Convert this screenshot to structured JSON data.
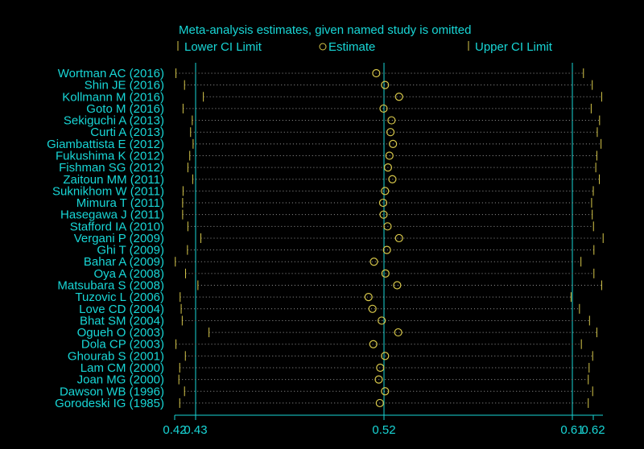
{
  "chart_data": {
    "type": "forest",
    "title": "Meta-analysis estimates, given named study is omitted",
    "legend": [
      {
        "symbol": "|",
        "label": "Lower CI Limit"
      },
      {
        "symbol": "o",
        "label": "Estimate"
      },
      {
        "symbol": "|",
        "label": "Upper CI Limit"
      }
    ],
    "x_ticks": [
      "0.42",
      "0.43",
      "0.52",
      "0.61",
      "0.62"
    ],
    "x_tick_values": [
      0.42,
      0.43,
      0.52,
      0.61,
      0.62
    ],
    "xlim": [
      0.42,
      0.62
    ],
    "reference_lines": [
      0.43,
      0.52,
      0.61
    ],
    "studies": [
      {
        "label": "Wortman AC (2016)",
        "lower": 0.4206,
        "estimate": 0.5163,
        "upper": 0.6153
      },
      {
        "label": "Shin JE (2016)",
        "lower": 0.4247,
        "estimate": 0.5205,
        "upper": 0.6195
      },
      {
        "label": "Kollmann M (2016)",
        "lower": 0.4337,
        "estimate": 0.5272,
        "upper": 0.624
      },
      {
        "label": "Goto M (2016)",
        "lower": 0.424,
        "estimate": 0.5198,
        "upper": 0.619
      },
      {
        "label": "Sekiguchi A (2013)",
        "lower": 0.4284,
        "estimate": 0.5236,
        "upper": 0.623
      },
      {
        "label": "Curti A (2013)",
        "lower": 0.4276,
        "estimate": 0.5231,
        "upper": 0.6219
      },
      {
        "label": "Giambattista E (2012)",
        "lower": 0.4288,
        "estimate": 0.5243,
        "upper": 0.6237
      },
      {
        "label": "Fukushima K (2012)",
        "lower": 0.4272,
        "estimate": 0.5226,
        "upper": 0.6217
      },
      {
        "label": "Fishman SG (2012)",
        "lower": 0.4263,
        "estimate": 0.5219,
        "upper": 0.6212
      },
      {
        "label": "Zaitoun MM (2011)",
        "lower": 0.4286,
        "estimate": 0.524,
        "upper": 0.6229
      },
      {
        "label": "Suknikhom W (2011)",
        "lower": 0.424,
        "estimate": 0.5205,
        "upper": 0.62
      },
      {
        "label": "Mimura T (2011)",
        "lower": 0.4238,
        "estimate": 0.5196,
        "upper": 0.6192
      },
      {
        "label": "Hasegawa J (2011)",
        "lower": 0.4238,
        "estimate": 0.5198,
        "upper": 0.6195
      },
      {
        "label": "Stafford IA (2010)",
        "lower": 0.4263,
        "estimate": 0.5217,
        "upper": 0.6201
      },
      {
        "label": "Vergani P (2009)",
        "lower": 0.4325,
        "estimate": 0.5272,
        "upper": 0.6247
      },
      {
        "label": "Ghi T (2009)",
        "lower": 0.4261,
        "estimate": 0.5214,
        "upper": 0.6203
      },
      {
        "label": "Bahar A (2009)",
        "lower": 0.4203,
        "estimate": 0.5152,
        "upper": 0.6141
      },
      {
        "label": "Oya A (2008)",
        "lower": 0.4252,
        "estimate": 0.5207,
        "upper": 0.6203
      },
      {
        "label": "Matsubara S (2008)",
        "lower": 0.4311,
        "estimate": 0.5263,
        "upper": 0.624
      },
      {
        "label": "Tuzovic L (2006)",
        "lower": 0.4226,
        "estimate": 0.5126,
        "upper": 0.6094
      },
      {
        "label": "Love CD (2004)",
        "lower": 0.4231,
        "estimate": 0.5145,
        "upper": 0.6134
      },
      {
        "label": "Bhat SM (2004)",
        "lower": 0.4236,
        "estimate": 0.5189,
        "upper": 0.6182
      },
      {
        "label": "Ogueh O (2003)",
        "lower": 0.4364,
        "estimate": 0.5268,
        "upper": 0.6217
      },
      {
        "label": "Dola CP (2003)",
        "lower": 0.4206,
        "estimate": 0.5149,
        "upper": 0.6143
      },
      {
        "label": "Ghourab S (2001)",
        "lower": 0.4251,
        "estimate": 0.5205,
        "upper": 0.6197
      },
      {
        "label": "Lam CM (2000)",
        "lower": 0.4224,
        "estimate": 0.5182,
        "upper": 0.618
      },
      {
        "label": "Joan MG (2000)",
        "lower": 0.422,
        "estimate": 0.5175,
        "upper": 0.6176
      },
      {
        "label": "Dawson WB (1996)",
        "lower": 0.4247,
        "estimate": 0.5205,
        "upper": 0.6197
      },
      {
        "label": "Gorodeski IG (1985)",
        "lower": 0.4224,
        "estimate": 0.518,
        "upper": 0.6176
      }
    ],
    "colors": {
      "background": "#000000",
      "text": "#18d6d6",
      "axis": "#18d6d6",
      "marker": "#d8c84a",
      "dotted": "#9a9a9a"
    }
  }
}
